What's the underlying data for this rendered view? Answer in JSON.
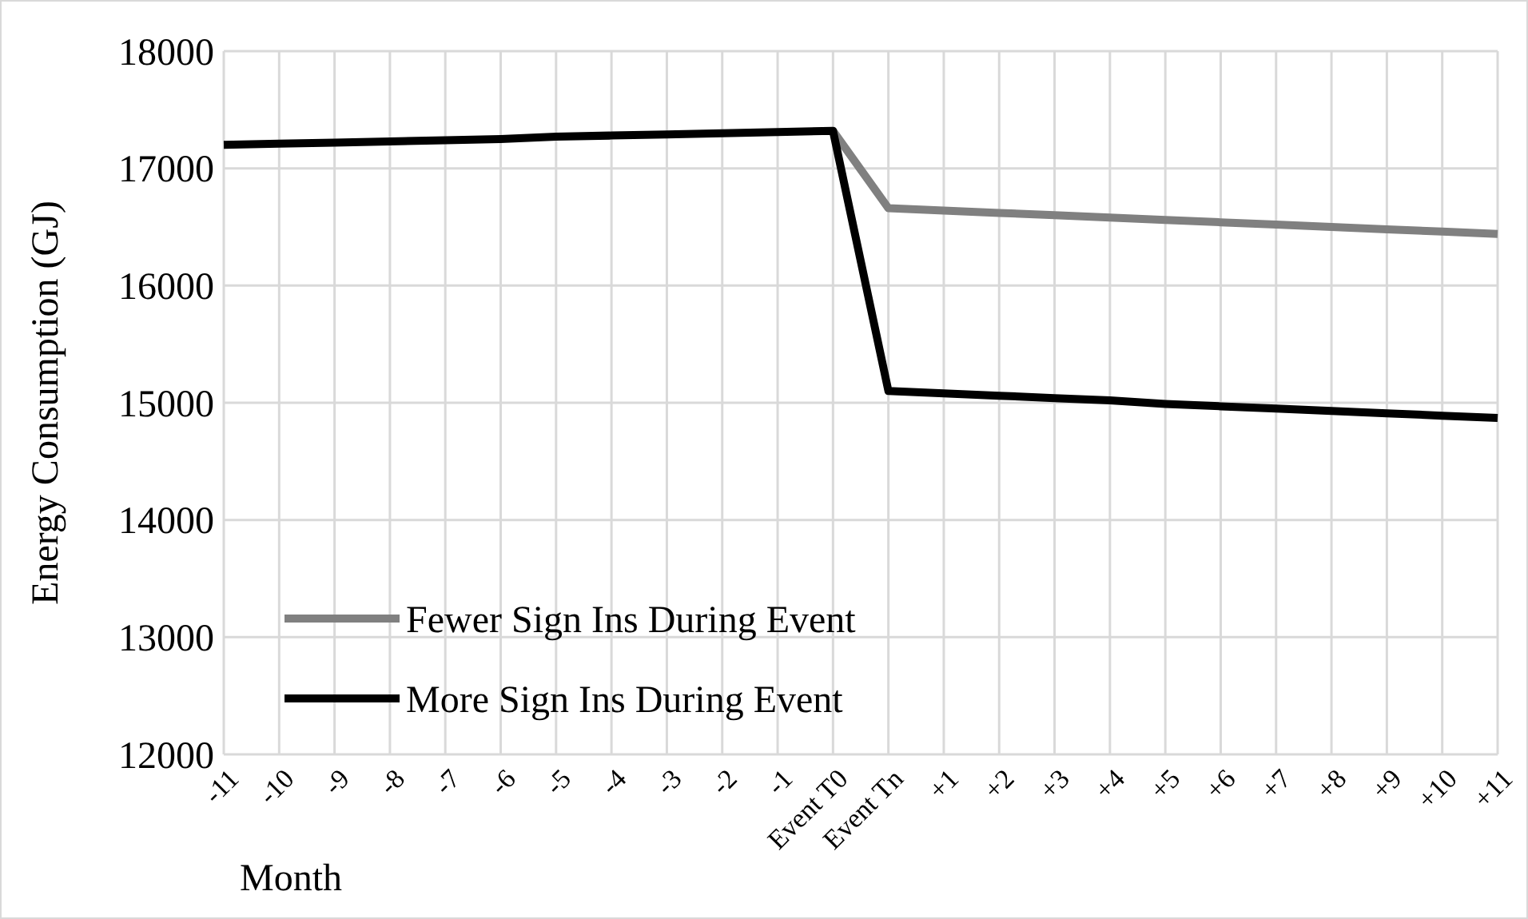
{
  "chart_data": {
    "type": "line",
    "xlabel": "Month",
    "ylabel": "Energy Consumption (GJ)",
    "categories": [
      "-11",
      "-10",
      "-9",
      "-8",
      "-7",
      "-6",
      "-5",
      "-4",
      "-3",
      "-2",
      "-1",
      "Event T0",
      "Event Tn",
      "+1",
      "+2",
      "+3",
      "+4",
      "+5",
      "+6",
      "+7",
      "+8",
      "+9",
      "+10",
      "+11"
    ],
    "series": [
      {
        "name": "Fewer Sign Ins During Event",
        "color": "#808080",
        "values": [
          null,
          null,
          null,
          null,
          null,
          null,
          null,
          null,
          null,
          null,
          null,
          17320,
          16660,
          16640,
          16620,
          16600,
          16580,
          16560,
          16540,
          16520,
          16500,
          16480,
          16460,
          16440
        ]
      },
      {
        "name": "More Sign Ins During Event",
        "color": "#000000",
        "values": [
          17200,
          17210,
          17220,
          17230,
          17240,
          17250,
          17270,
          17280,
          17290,
          17300,
          17310,
          17320,
          15100,
          15080,
          15060,
          15040,
          15020,
          14990,
          14970,
          14950,
          14930,
          14910,
          14890,
          14870
        ]
      }
    ],
    "ylim": [
      12000,
      18000
    ],
    "yticks": [
      12000,
      13000,
      14000,
      15000,
      16000,
      17000,
      18000
    ],
    "grid": true,
    "legend": "bottom left",
    "marker": "none",
    "line_style": "solid"
  }
}
